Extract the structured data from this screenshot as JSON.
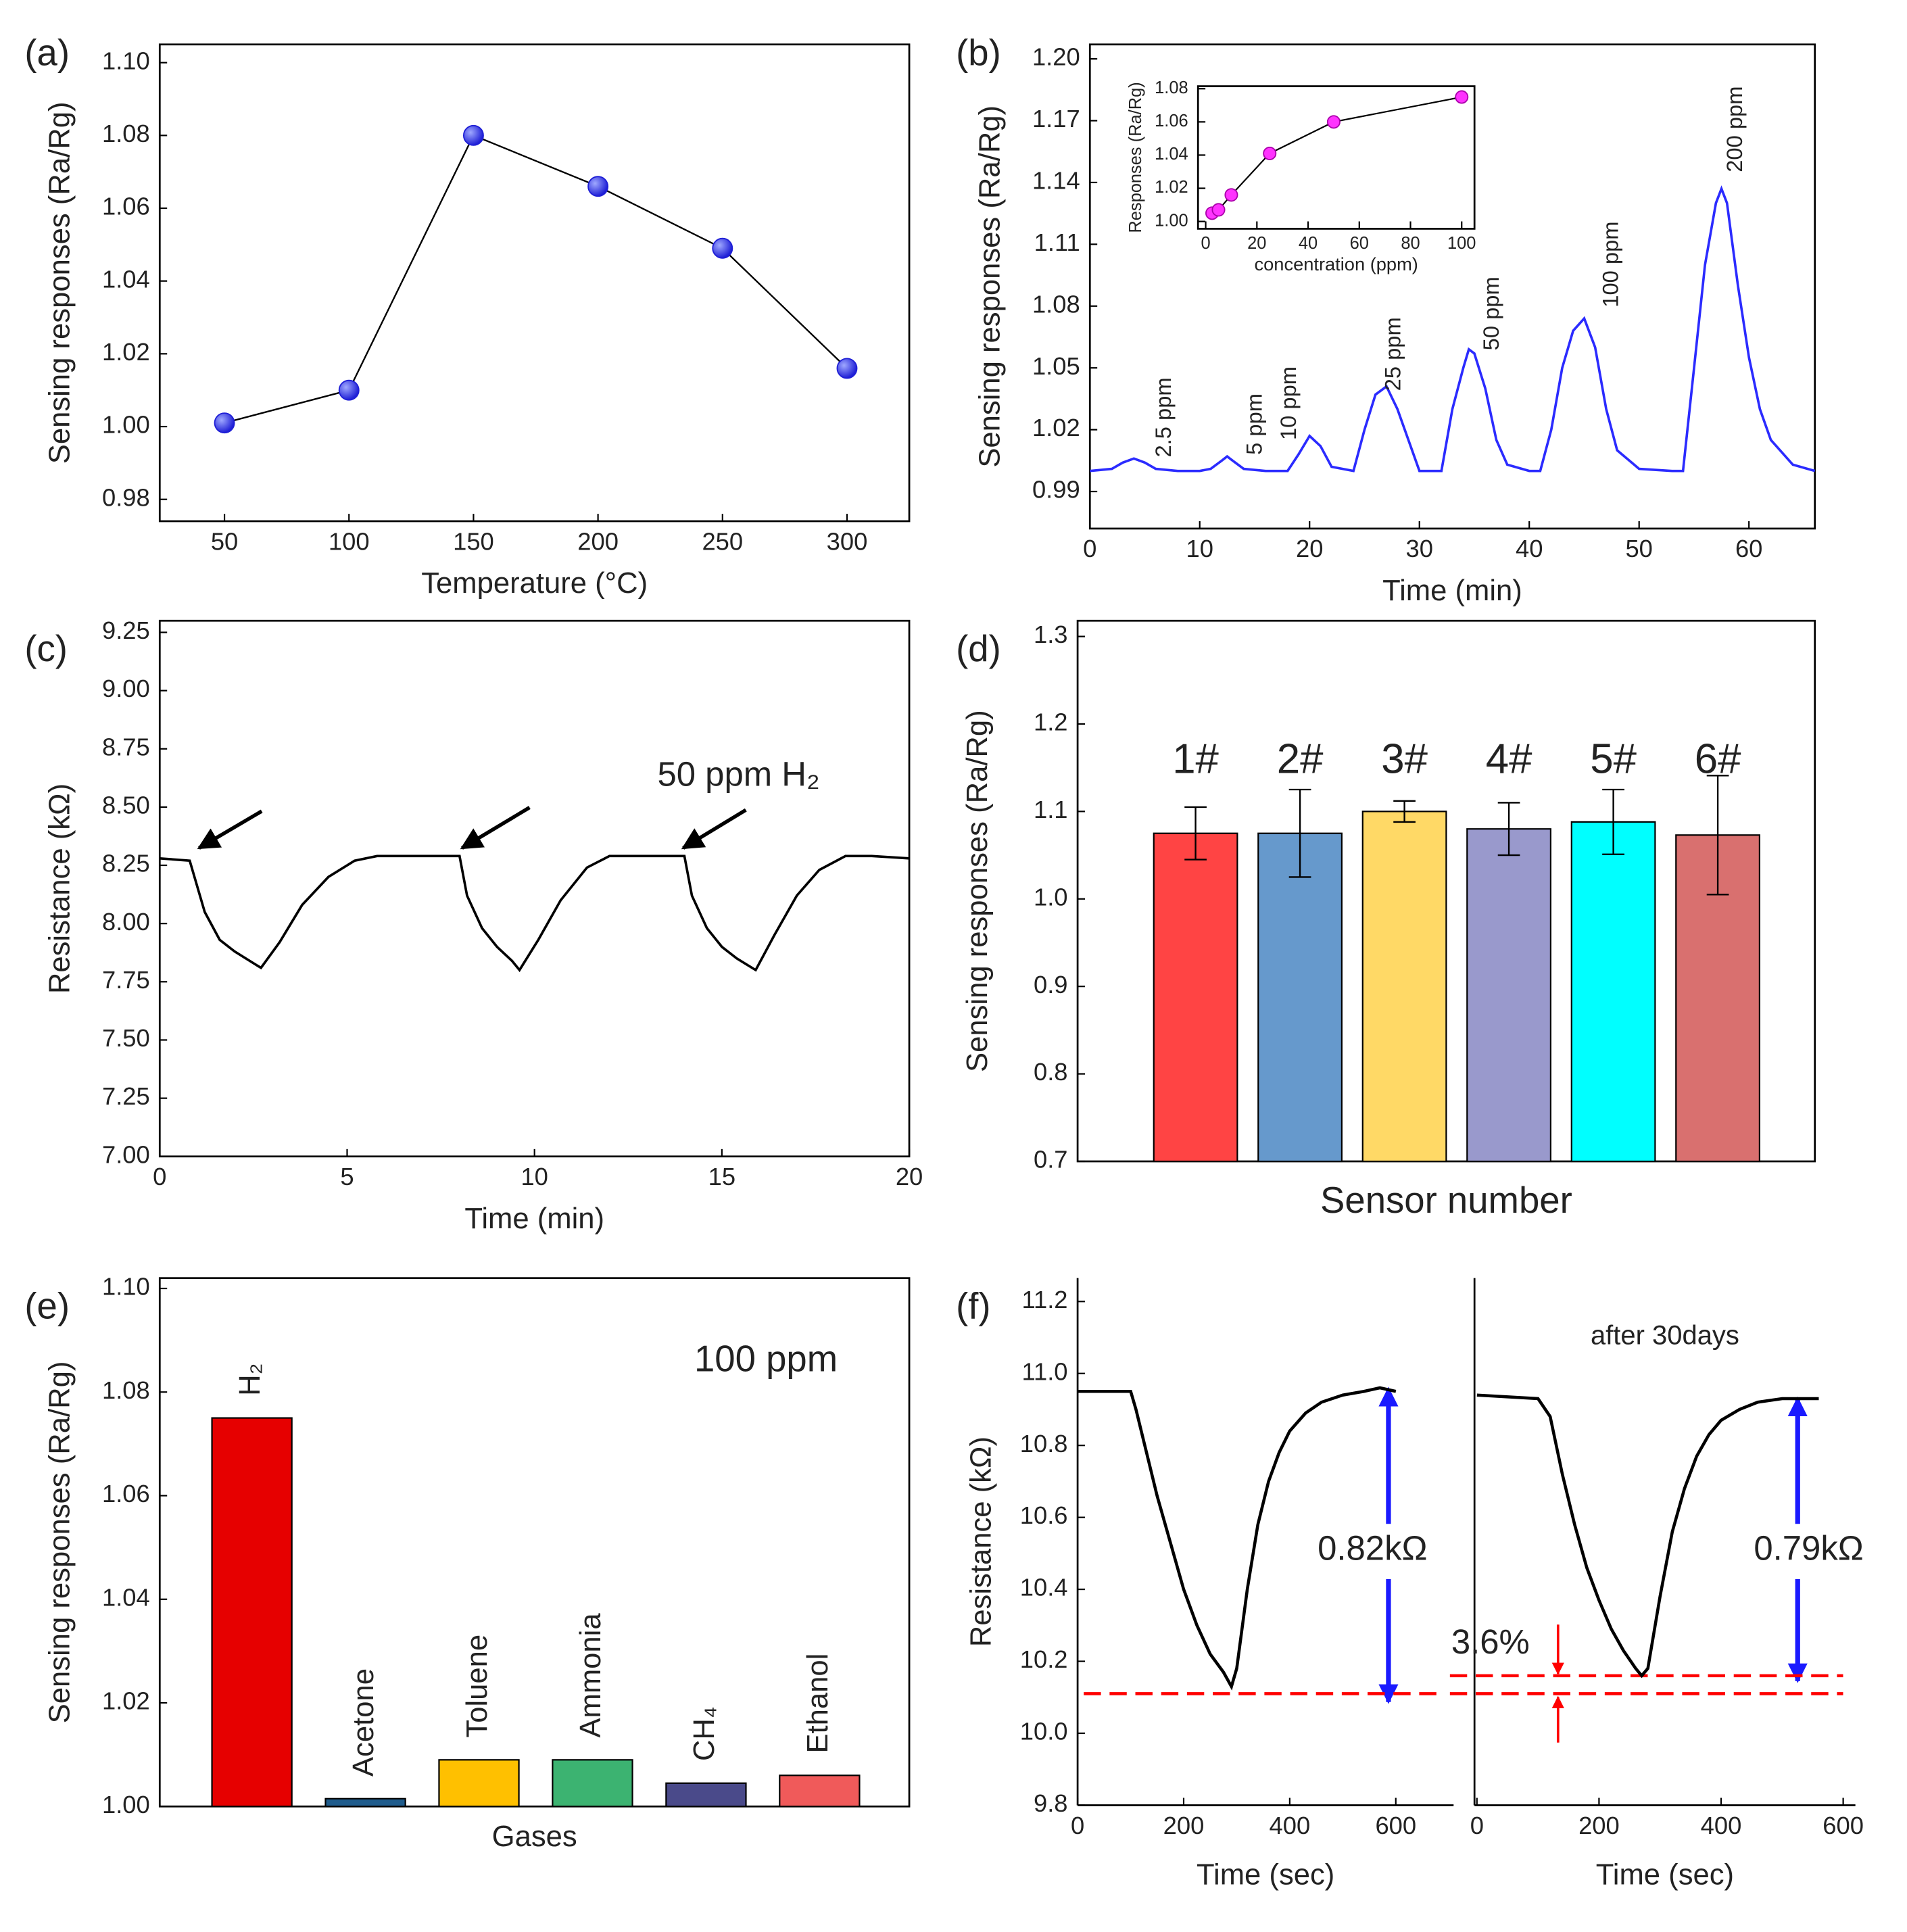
{
  "chart_data": [
    {
      "type": "line",
      "panel_label": "(a)",
      "x": [
        50,
        100,
        150,
        200,
        250,
        300
      ],
      "values": [
        1.001,
        1.01,
        1.08,
        1.066,
        1.049,
        1.016
      ],
      "color": "#1f1fd6",
      "line_color": "#000000",
      "markers": true,
      "xlim": [
        24,
        325
      ],
      "xticks": [
        50,
        100,
        150,
        200,
        250,
        300
      ],
      "ylim": [
        0.974,
        1.105
      ],
      "yticks": [
        0.98,
        {
          "value": 1,
          "label": "1.00"
        },
        1.02,
        1.04,
        1.06,
        1.08,
        {
          "value": 1.1,
          "label": "1.10"
        }
      ],
      "xlabel": "Temperature (°C)",
      "ylabel": "Sensing responses (Ra/Rg)"
    },
    {
      "type": "line",
      "panel_label": "(b)",
      "x": [
        0,
        2,
        3,
        4,
        5,
        6,
        8,
        10,
        11,
        12,
        12.5,
        13,
        14,
        16,
        18,
        19,
        20,
        21,
        22,
        24,
        25,
        26,
        27,
        28,
        30,
        32,
        33,
        34,
        34.5,
        35,
        36,
        37,
        38,
        40,
        41,
        42,
        43,
        44,
        45,
        46,
        47,
        48,
        50,
        53,
        54,
        55,
        56,
        57,
        57.5,
        58,
        59,
        60,
        61,
        62,
        64,
        66
      ],
      "values": [
        1.0,
        1.001,
        1.004,
        1.006,
        1.004,
        1.001,
        1.0,
        1.0,
        1.001,
        1.005,
        1.007,
        1.005,
        1.001,
        1.0,
        1.0,
        1.008,
        1.017,
        1.012,
        1.002,
        1.0,
        1.02,
        1.037,
        1.041,
        1.03,
        1.0,
        1.0,
        1.03,
        1.05,
        1.059,
        1.057,
        1.04,
        1.015,
        1.003,
        1.0,
        1.0,
        1.02,
        1.05,
        1.068,
        1.074,
        1.06,
        1.03,
        1.01,
        1.001,
        1.0,
        1.0,
        1.05,
        1.1,
        1.13,
        1.137,
        1.13,
        1.09,
        1.055,
        1.03,
        1.015,
        1.003,
        1.0
      ],
      "color": "#2b2bff",
      "xlim": [
        0,
        66
      ],
      "xticks": [
        0,
        10,
        20,
        30,
        40,
        50,
        60
      ],
      "ylim": [
        0.972,
        1.207
      ],
      "yticks": [
        0.99,
        1.02,
        1.05,
        1.08,
        1.11,
        1.14,
        1.17,
        {
          "value": 1.2,
          "label": "1.20"
        }
      ],
      "xlabel": "Time (min)",
      "ylabel": "Sensing responses (Ra/Rg)",
      "annotations": [
        "2.5 ppm",
        "5 ppm",
        "10 ppm",
        "25 ppm",
        "50 ppm",
        "100 ppm",
        "200 ppm"
      ],
      "inset": {
        "type": "scatter",
        "x": [
          2.5,
          5,
          10,
          25,
          50,
          100
        ],
        "values": [
          1.005,
          1.007,
          1.016,
          1.041,
          1.06,
          1.075
        ],
        "color": "#ff33ff",
        "xlim": [
          -3,
          105
        ],
        "xticks": [
          0,
          20,
          40,
          60,
          80,
          100
        ],
        "ylim": [
          0.9956,
          1.0815
        ],
        "yticks": [
          {
            "value": 1,
            "label": "1.00"
          },
          1.02,
          1.04,
          1.06,
          1.08
        ],
        "xlabel": "concentration (ppm)",
        "ylabel": "Responses (Ra/Rg)"
      }
    },
    {
      "type": "line",
      "panel_label": "(c)",
      "x": [
        0,
        0.8,
        1.2,
        1.6,
        2.0,
        2.4,
        2.7,
        3.2,
        3.8,
        4.5,
        5.2,
        5.8,
        7,
        8,
        8.2,
        8.6,
        9.0,
        9.4,
        9.6,
        10.1,
        10.7,
        11.4,
        12,
        13,
        14,
        14.2,
        14.6,
        15,
        15.4,
        15.9,
        16.4,
        17,
        17.6,
        18.3,
        19,
        20
      ],
      "values": [
        8.28,
        8.27,
        8.05,
        7.93,
        7.88,
        7.84,
        7.81,
        7.92,
        8.08,
        8.2,
        8.27,
        8.29,
        8.29,
        8.29,
        8.12,
        7.98,
        7.9,
        7.84,
        7.8,
        7.93,
        8.1,
        8.24,
        8.29,
        8.29,
        8.29,
        8.12,
        7.98,
        7.9,
        7.85,
        7.8,
        7.95,
        8.12,
        8.23,
        8.29,
        8.29,
        8.28
      ],
      "color": "#000000",
      "xlim": [
        0,
        20
      ],
      "xticks": [
        0,
        5,
        10,
        15,
        20
      ],
      "ylim": [
        7,
        9.3
      ],
      "yticks": [
        {
          "value": 7,
          "label": "7.00"
        },
        7.25,
        {
          "value": 7.5,
          "label": "7.50"
        },
        7.75,
        {
          "value": 8,
          "label": "8.00"
        },
        8.25,
        {
          "value": 8.5,
          "label": "8.50"
        },
        8.75,
        {
          "value": 9,
          "label": "9.00"
        },
        9.25
      ],
      "xlabel": "Time (min)",
      "ylabel": "Resistance (kΩ)",
      "annotations": [
        "50 ppm H₂"
      ]
    },
    {
      "type": "bar",
      "panel_label": "(d)",
      "categories": [
        "1#",
        "2#",
        "3#",
        "4#",
        "5#",
        "6#"
      ],
      "values": [
        1.075,
        1.075,
        1.1,
        1.08,
        1.088,
        1.073
      ],
      "errors": [
        0.03,
        0.05,
        0.012,
        0.03,
        0.037,
        0.068
      ],
      "colors": [
        "#ff4444",
        "#6699cc",
        "#ffd966",
        "#9999cc",
        "#00ffff",
        "#d9706f"
      ],
      "ylim": [
        0.7,
        1.318
      ],
      "yticks": [
        0.7,
        0.8,
        0.9,
        {
          "value": 1,
          "label": "1.0"
        },
        1.1,
        1.2,
        1.3
      ],
      "xlabel": "Sensor number",
      "ylabel": "Sensing responses (Ra/Rg)"
    },
    {
      "type": "bar",
      "panel_label": "(e)",
      "categories": [
        "H₂",
        "Acetone",
        "Toluene",
        "Ammonia",
        "CH₄",
        "Ethanol"
      ],
      "values": [
        1.075,
        1.0015,
        1.009,
        1.009,
        1.0045,
        1.006
      ],
      "colors": [
        "#e60000",
        "#1f5c8c",
        "#ffc000",
        "#3cb371",
        "#4a4a8a",
        "#f05a5a"
      ],
      "ylim": [
        1,
        1.102
      ],
      "yticks": [
        {
          "value": 1,
          "label": "1.00"
        },
        1.02,
        1.04,
        1.06,
        1.08,
        {
          "value": 1.1,
          "label": "1.10"
        }
      ],
      "xlabel": "Gases",
      "ylabel": "Sensing responses (Ra/Rg)",
      "annotations": [
        "100 ppm"
      ]
    },
    {
      "type": "broken-line",
      "panel_label": "(f)",
      "ylim": [
        9.8,
        11.265
      ],
      "yticks": [
        9.8,
        {
          "value": 10,
          "label": "10.0"
        },
        10.2,
        10.4,
        10.6,
        10.8,
        {
          "value": 11,
          "label": "11.0"
        },
        11.2
      ],
      "ylabel": "Resistance (kΩ)",
      "color": "#000000",
      "ref_color": "#ff0000",
      "annotations": [
        "after 30days",
        "0.82kΩ",
        "0.79kΩ",
        "3.6%"
      ],
      "segments": [
        {
          "x": [
            0,
            100,
            110,
            130,
            150,
            175,
            200,
            225,
            250,
            275,
            290,
            300,
            320,
            340,
            360,
            380,
            400,
            430,
            460,
            500,
            540,
            570,
            600
          ],
          "values": [
            10.95,
            10.95,
            10.9,
            10.78,
            10.66,
            10.53,
            10.4,
            10.3,
            10.22,
            10.17,
            10.13,
            10.18,
            10.4,
            10.58,
            10.7,
            10.78,
            10.84,
            10.89,
            10.92,
            10.94,
            10.95,
            10.96,
            10.95
          ],
          "xlim": [
            0,
            709
          ],
          "xticks": [
            0,
            200,
            400,
            600
          ],
          "xlabel": "Time (sec)",
          "ref_lines": [
            10.11
          ]
        },
        {
          "x": [
            0,
            100,
            120,
            140,
            160,
            180,
            200,
            220,
            240,
            260,
            270,
            280,
            300,
            320,
            340,
            360,
            380,
            400,
            430,
            460,
            500,
            560
          ],
          "values": [
            10.94,
            10.93,
            10.88,
            10.72,
            10.58,
            10.46,
            10.37,
            10.29,
            10.23,
            10.18,
            10.16,
            10.18,
            10.38,
            10.56,
            10.68,
            10.77,
            10.83,
            10.87,
            10.9,
            10.92,
            10.93,
            10.93
          ],
          "xlim": [
            -4,
            620
          ],
          "xticks": [
            0,
            200,
            400,
            600
          ],
          "xlabel": "Time (sec)",
          "ref_lines": [
            10.16,
            10.11
          ]
        }
      ]
    }
  ]
}
